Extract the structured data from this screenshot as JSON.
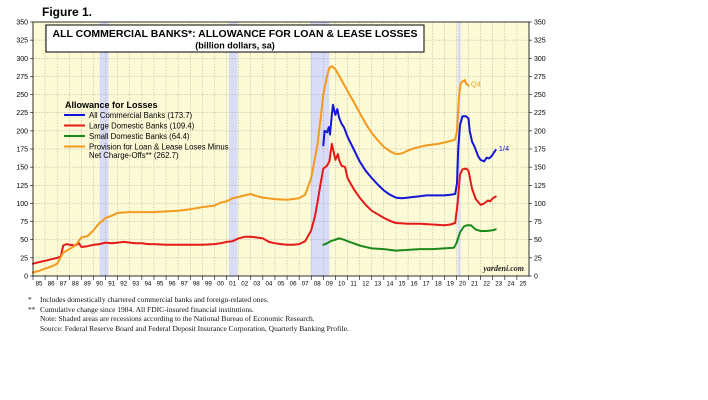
{
  "figure_label": "Figure 1.",
  "title": "ALL COMMERCIAL BANKS*: ALLOWANCE FOR LOAN & LEASE LOSSES",
  "subtitle": "(billion dollars, sa)",
  "watermark": "yardeni.com",
  "footnotes": [
    {
      "mark": "*",
      "text": "Includes domestically chartered commercial banks and foreign-related ones."
    },
    {
      "mark": "**",
      "text": "Cumulative change since 1984. All FDIC-insured financial institutions."
    },
    {
      "mark": "",
      "text": "Note: Shaded areas are recessions according to the National Bureau of Economic Research."
    },
    {
      "mark": "",
      "text": "Source: Federal Reserve Board and Federal Deposit Insurance Corporation, Quarterly Banking Profile."
    }
  ],
  "chart_data": {
    "type": "line",
    "legend_title": "Allowance for Losses",
    "legend_position": "left",
    "ylim": [
      0,
      350
    ],
    "y_ticks": [
      "0",
      "25",
      "50",
      "75",
      "100",
      "125",
      "150",
      "175",
      "200",
      "225",
      "250",
      "275",
      "300",
      "325",
      "350"
    ],
    "xlim": [
      1985,
      2026
    ],
    "x_ticks": [
      "85",
      "86",
      "87",
      "88",
      "89",
      "90",
      "91",
      "92",
      "93",
      "94",
      "95",
      "96",
      "97",
      "98",
      "99",
      "00",
      "01",
      "02",
      "03",
      "04",
      "05",
      "06",
      "07",
      "08",
      "09",
      "10",
      "11",
      "12",
      "13",
      "14",
      "15",
      "16",
      "17",
      "18",
      "19",
      "20",
      "21",
      "22",
      "23",
      "24",
      "25"
    ],
    "grid": true,
    "background_color": "#fdfbd6",
    "recession_color": "#d9dcf6",
    "recessions": [
      [
        1990.5,
        1991.25
      ],
      [
        2001.2,
        2001.9
      ],
      [
        2007.95,
        2009.5
      ],
      [
        2020.1,
        2020.35
      ]
    ],
    "annotations": [
      {
        "text": "Q4",
        "x": 2021.2,
        "y": 261,
        "color": "#f39a1e"
      },
      {
        "text": "1/4",
        "x": 2023.5,
        "y": 172,
        "color": "#1515d8"
      }
    ],
    "series": [
      {
        "name": "All Commercial Banks (173.7)",
        "color": "#1515d8",
        "points": [
          [
            2009.0,
            180
          ],
          [
            2009.1,
            200
          ],
          [
            2009.3,
            198
          ],
          [
            2009.45,
            205
          ],
          [
            2009.55,
            195
          ],
          [
            2009.7,
            222
          ],
          [
            2009.8,
            236
          ],
          [
            2009.9,
            228
          ],
          [
            2010.0,
            222
          ],
          [
            2010.15,
            230
          ],
          [
            2010.3,
            218
          ],
          [
            2010.5,
            210
          ],
          [
            2010.7,
            205
          ],
          [
            2011.0,
            192
          ],
          [
            2011.5,
            175
          ],
          [
            2012.0,
            158
          ],
          [
            2012.5,
            145
          ],
          [
            2013.0,
            135
          ],
          [
            2013.5,
            126
          ],
          [
            2014.0,
            118
          ],
          [
            2014.5,
            112
          ],
          [
            2015.0,
            108
          ],
          [
            2015.5,
            107
          ],
          [
            2016.0,
            108
          ],
          [
            2016.5,
            109
          ],
          [
            2017.0,
            110
          ],
          [
            2017.5,
            111
          ],
          [
            2018.0,
            111
          ],
          [
            2018.5,
            111
          ],
          [
            2019.0,
            111
          ],
          [
            2019.5,
            112
          ],
          [
            2019.9,
            113
          ],
          [
            2020.05,
            128
          ],
          [
            2020.15,
            175
          ],
          [
            2020.3,
            208
          ],
          [
            2020.5,
            220
          ],
          [
            2020.8,
            220
          ],
          [
            2021.0,
            217
          ],
          [
            2021.1,
            200
          ],
          [
            2021.3,
            185
          ],
          [
            2021.5,
            178
          ],
          [
            2021.8,
            165
          ],
          [
            2022.0,
            160
          ],
          [
            2022.3,
            158
          ],
          [
            2022.5,
            163
          ],
          [
            2022.7,
            162
          ],
          [
            2022.9,
            165
          ],
          [
            2023.1,
            170
          ],
          [
            2023.25,
            173.7
          ]
        ]
      },
      {
        "name": "Large Domestic Banks (109.4)",
        "color": "#e61919",
        "points": [
          [
            1985.0,
            17
          ],
          [
            1985.5,
            19
          ],
          [
            1986.0,
            21
          ],
          [
            1986.5,
            23
          ],
          [
            1987.0,
            25
          ],
          [
            1987.3,
            27
          ],
          [
            1987.5,
            42
          ],
          [
            1987.8,
            44
          ],
          [
            1988.0,
            43
          ],
          [
            1988.5,
            42
          ],
          [
            1988.8,
            45
          ],
          [
            1989.0,
            40
          ],
          [
            1989.5,
            41
          ],
          [
            1990.0,
            43
          ],
          [
            1990.5,
            44
          ],
          [
            1991.0,
            46
          ],
          [
            1991.5,
            45
          ],
          [
            1992.0,
            46
          ],
          [
            1992.5,
            47
          ],
          [
            1993.0,
            46
          ],
          [
            1993.5,
            45
          ],
          [
            1994.0,
            45
          ],
          [
            1994.5,
            44
          ],
          [
            1995.0,
            44
          ],
          [
            1996.0,
            43
          ],
          [
            1997.0,
            43
          ],
          [
            1998.0,
            43
          ],
          [
            1999.0,
            43
          ],
          [
            2000.0,
            44
          ],
          [
            2000.5,
            45
          ],
          [
            2001.0,
            47
          ],
          [
            2001.5,
            48
          ],
          [
            2002.0,
            52
          ],
          [
            2002.5,
            54
          ],
          [
            2003.0,
            54
          ],
          [
            2003.5,
            53
          ],
          [
            2004.0,
            52
          ],
          [
            2004.5,
            47
          ],
          [
            2005.0,
            45
          ],
          [
            2005.5,
            44
          ],
          [
            2006.0,
            43
          ],
          [
            2006.5,
            43
          ],
          [
            2007.0,
            44
          ],
          [
            2007.5,
            48
          ],
          [
            2008.0,
            63
          ],
          [
            2008.3,
            82
          ],
          [
            2008.5,
            100
          ],
          [
            2008.75,
            125
          ],
          [
            2009.0,
            148
          ],
          [
            2009.3,
            152
          ],
          [
            2009.5,
            158
          ],
          [
            2009.7,
            182
          ],
          [
            2009.8,
            175
          ],
          [
            2010.0,
            160
          ],
          [
            2010.2,
            168
          ],
          [
            2010.3,
            160
          ],
          [
            2010.5,
            152
          ],
          [
            2010.8,
            150
          ],
          [
            2011.0,
            135
          ],
          [
            2011.5,
            120
          ],
          [
            2012.0,
            108
          ],
          [
            2012.5,
            98
          ],
          [
            2013.0,
            90
          ],
          [
            2013.5,
            85
          ],
          [
            2014.0,
            80
          ],
          [
            2014.5,
            76
          ],
          [
            2015.0,
            73
          ],
          [
            2016.0,
            72
          ],
          [
            2017.0,
            72
          ],
          [
            2018.0,
            71
          ],
          [
            2019.0,
            70
          ],
          [
            2019.5,
            71
          ],
          [
            2019.9,
            73
          ],
          [
            2020.1,
            100
          ],
          [
            2020.3,
            140
          ],
          [
            2020.5,
            147
          ],
          [
            2020.8,
            148
          ],
          [
            2021.0,
            145
          ],
          [
            2021.3,
            120
          ],
          [
            2021.6,
            106
          ],
          [
            2022.0,
            98
          ],
          [
            2022.3,
            100
          ],
          [
            2022.6,
            104
          ],
          [
            2022.8,
            103
          ],
          [
            2023.0,
            107
          ],
          [
            2023.25,
            109.4
          ]
        ]
      },
      {
        "name": "Small Domestic Banks (64.4)",
        "color": "#1b8a1b",
        "points": [
          [
            2009.0,
            43
          ],
          [
            2009.3,
            45
          ],
          [
            2009.6,
            48
          ],
          [
            2010.0,
            50
          ],
          [
            2010.3,
            52
          ],
          [
            2010.7,
            50
          ],
          [
            2011.0,
            48
          ],
          [
            2011.5,
            45
          ],
          [
            2012.0,
            42
          ],
          [
            2012.5,
            40
          ],
          [
            2013.0,
            38
          ],
          [
            2014.0,
            37
          ],
          [
            2015.0,
            35
          ],
          [
            2016.0,
            36
          ],
          [
            2017.0,
            37
          ],
          [
            2018.0,
            37
          ],
          [
            2019.0,
            38
          ],
          [
            2019.8,
            39
          ],
          [
            2020.0,
            45
          ],
          [
            2020.3,
            60
          ],
          [
            2020.6,
            68
          ],
          [
            2020.9,
            70
          ],
          [
            2021.2,
            70
          ],
          [
            2021.6,
            64
          ],
          [
            2022.0,
            62
          ],
          [
            2022.5,
            62
          ],
          [
            2023.0,
            63
          ],
          [
            2023.25,
            64.4
          ]
        ]
      },
      {
        "name": "Provision for Loan & Lease Loses Minus\nNet Charge-Offs** (262.7)",
        "color": "#f39a1e",
        "points": [
          [
            1985.0,
            5
          ],
          [
            1985.5,
            7
          ],
          [
            1986.0,
            10
          ],
          [
            1986.5,
            13
          ],
          [
            1987.0,
            17
          ],
          [
            1987.5,
            32
          ],
          [
            1988.0,
            37
          ],
          [
            1988.5,
            42
          ],
          [
            1989.0,
            53
          ],
          [
            1989.5,
            55
          ],
          [
            1990.0,
            63
          ],
          [
            1990.5,
            73
          ],
          [
            1990.75,
            76
          ],
          [
            1991.0,
            80
          ],
          [
            1991.5,
            83
          ],
          [
            1992.0,
            87
          ],
          [
            1993.0,
            88
          ],
          [
            1994.0,
            88
          ],
          [
            1995.0,
            88
          ],
          [
            1996.0,
            89
          ],
          [
            1997.0,
            90
          ],
          [
            1998.0,
            92
          ],
          [
            1999.0,
            95
          ],
          [
            2000.0,
            97
          ],
          [
            2000.5,
            101
          ],
          [
            2001.0,
            103
          ],
          [
            2001.5,
            107
          ],
          [
            2002.0,
            109
          ],
          [
            2002.5,
            111
          ],
          [
            2003.0,
            113
          ],
          [
            2003.5,
            110
          ],
          [
            2004.0,
            108
          ],
          [
            2005.0,
            106
          ],
          [
            2006.0,
            105
          ],
          [
            2007.0,
            107
          ],
          [
            2007.5,
            112
          ],
          [
            2008.0,
            135
          ],
          [
            2008.5,
            180
          ],
          [
            2008.8,
            220
          ],
          [
            2009.0,
            250
          ],
          [
            2009.3,
            275
          ],
          [
            2009.5,
            287
          ],
          [
            2009.7,
            289
          ],
          [
            2010.0,
            285
          ],
          [
            2010.5,
            270
          ],
          [
            2011.0,
            255
          ],
          [
            2011.5,
            240
          ],
          [
            2012.0,
            225
          ],
          [
            2012.5,
            210
          ],
          [
            2013.0,
            197
          ],
          [
            2013.5,
            187
          ],
          [
            2014.0,
            178
          ],
          [
            2014.5,
            172
          ],
          [
            2015.0,
            168
          ],
          [
            2015.5,
            169
          ],
          [
            2016.0,
            173
          ],
          [
            2016.5,
            176
          ],
          [
            2017.0,
            178
          ],
          [
            2017.5,
            180
          ],
          [
            2018.0,
            181
          ],
          [
            2018.5,
            182
          ],
          [
            2019.0,
            184
          ],
          [
            2019.5,
            186
          ],
          [
            2019.9,
            188
          ],
          [
            2020.05,
            200
          ],
          [
            2020.2,
            245
          ],
          [
            2020.35,
            265
          ],
          [
            2020.5,
            268
          ],
          [
            2020.7,
            270
          ],
          [
            2020.8,
            265
          ],
          [
            2021.0,
            262.7
          ]
        ]
      }
    ]
  }
}
